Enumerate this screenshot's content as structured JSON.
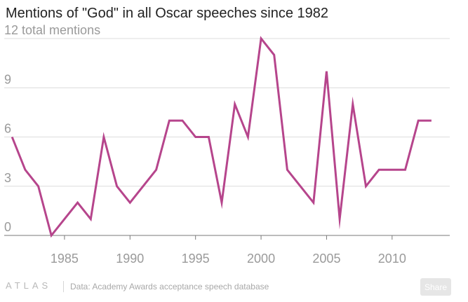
{
  "chart_data": {
    "type": "line",
    "title": "Mentions of \"God\" in all Oscar speeches since 1982",
    "ylabel": "total mentions",
    "xlabel": "",
    "x": [
      1981,
      1982,
      1983,
      1984,
      1986,
      1987,
      1988,
      1989,
      1990,
      1992,
      1993,
      1994,
      1995,
      1996,
      1997,
      1998,
      1999,
      2000,
      2001,
      2002,
      2004,
      2005,
      2006,
      2007,
      2008,
      2009,
      2011,
      2012,
      2013
    ],
    "series": [
      {
        "name": "Mentions of \"God\"",
        "values": [
          6,
          4,
          3,
          0,
          2,
          1,
          6,
          3,
          2,
          4,
          7,
          7,
          6,
          6,
          2,
          8,
          6,
          12,
          11,
          4,
          2,
          10,
          1,
          8,
          3,
          4,
          4,
          7,
          7
        ]
      }
    ],
    "xlim": [
      1980.4,
      2014.4
    ],
    "ylim": [
      0,
      12
    ],
    "x_ticks": [
      1985,
      1990,
      1995,
      2000,
      2005,
      2010
    ],
    "y_ticks": [
      0,
      3,
      6,
      9,
      12
    ],
    "y_tick_labels": [
      "0",
      "3",
      "6",
      "9",
      "12"
    ],
    "grid": true,
    "line_color": "#b6458c"
  },
  "footer": {
    "brand": "ATLAS",
    "source": "Data: Academy Awards acceptance speech database",
    "share_label": "Share"
  }
}
